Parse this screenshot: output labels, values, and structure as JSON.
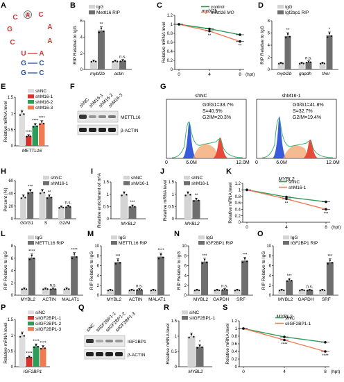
{
  "colors": {
    "dark": "#6e6e6e",
    "light": "#d4d4d4",
    "green": "#2e9c5a",
    "orange": "#f07b52",
    "red": "#d9332f",
    "blue": "#2b4d9c",
    "flow_blue": "#3a5bd9",
    "flow_green": "#3cb371",
    "flow_red": "#e64a3a"
  },
  "panel_A": {
    "label": "A",
    "loop_letters": [
      "A",
      "C",
      "A",
      "A",
      "C",
      "G",
      "C"
    ],
    "stem_left": [
      "U",
      "G",
      "G"
    ],
    "stem_right": [
      "A",
      "C",
      "C"
    ]
  },
  "panel_B": {
    "label": "B",
    "legend": [
      "IgG",
      "Mettl16 RIP"
    ],
    "ylabel": "RIP Relative to IgG",
    "categories": [
      "mybl2b",
      "actin"
    ],
    "sig": [
      "**",
      "n.s."
    ]
  },
  "panel_C": {
    "label": "C",
    "title": "mybl2b",
    "legend": [
      "control",
      "mettl16 MO"
    ],
    "ylabel": "Relative mRNA level",
    "xunit": "(hpt)",
    "sig": [
      "**",
      "**"
    ]
  },
  "panel_D": {
    "label": "D",
    "legend": [
      "IgG",
      "Igf2bp1 RIP"
    ],
    "ylabel": "RIP Relative to IgG",
    "categories": [
      "mybl2b",
      "gapdh",
      "thor"
    ],
    "sig": [
      "**",
      "n.s.",
      "*"
    ]
  },
  "panel_E": {
    "label": "E",
    "legend": [
      "shNC",
      "shM16-1",
      "shM16-2",
      "shM16-3"
    ],
    "ylabel": "Relative mRNA level",
    "xlabel": "METTL16",
    "sig": [
      "****",
      "****",
      "****"
    ]
  },
  "panel_F": {
    "label": "F",
    "lanes": [
      "shNC",
      "shM16-1",
      "shM16-2",
      "shM16-3"
    ],
    "bands": [
      "METTL16",
      "β-ACTIN"
    ]
  },
  "panel_G": {
    "label": "G",
    "plots": [
      {
        "title": "shNC",
        "stats": [
          "G0/G1=33.7%",
          "S=40.5%",
          "G2/M=20.3%"
        ]
      },
      {
        "title": "shM16-1",
        "stats": [
          "G0/G1=41.8%",
          "S=32.7%",
          "G2/M=19.4%"
        ]
      }
    ],
    "xticks": [
      "0",
      "6.0M",
      "12.0M"
    ]
  },
  "panel_H": {
    "label": "H",
    "legend": [
      "shNC",
      "shM16-1"
    ],
    "ylabel": "Percent (%)",
    "categories": [
      "G0/G1",
      "S",
      "G2/M"
    ],
    "sig": [
      "***",
      "**",
      "n.s."
    ]
  },
  "panel_I": {
    "label": "I",
    "legend": [
      "shNC",
      "shM16-1"
    ],
    "ylabel": "Relative enrichment of m⁶A",
    "xlabel": "MYBL2",
    "sig": [
      "***"
    ]
  },
  "panel_J": {
    "label": "J",
    "legend": [
      "shNC",
      "shM16-1"
    ],
    "ylabel": "Relative mRNA level",
    "xlabel": "MYBL2",
    "sig": [
      "**"
    ]
  },
  "panel_K": {
    "label": "K",
    "title": "MYBL2",
    "legend": [
      "shNC",
      "shM16-1"
    ],
    "ylabel": "Relative mRNA level",
    "xunit": "(hpt)",
    "sig": [
      "**",
      "***"
    ]
  },
  "panel_L": {
    "label": "L",
    "legend": [
      "IgG",
      "METTL16 RIP"
    ],
    "ylabel": "RIP Relative to IgG",
    "categories": [
      "MYBL2",
      "ACTIN",
      "MALAT1"
    ],
    "sig": [
      "****",
      "n.s.",
      "****"
    ]
  },
  "panel_M": {
    "label": "M",
    "legend": [
      "IgG",
      "METTL16 RIP"
    ],
    "ylabel": "RIP Relative to IgG",
    "categories": [
      "MYBL2",
      "ACTIN",
      "MALAT1"
    ],
    "sig": [
      "***",
      "n.s.",
      "****"
    ]
  },
  "panel_N": {
    "label": "N",
    "legend": [
      "IgG",
      "IGF2BP1 RIP"
    ],
    "ylabel": "RIP Relative to IgG",
    "categories": [
      "MYBL2",
      "GAPDH",
      "SRF"
    ],
    "sig": [
      "***",
      "n.s.",
      "***"
    ]
  },
  "panel_O": {
    "label": "O",
    "legend": [
      "IgG",
      "IGF2BP1 RIP"
    ],
    "ylabel": "RIP Relative to IgG",
    "categories": [
      "MYBL2",
      "GAPDH",
      "SRF"
    ],
    "sig": [
      "***",
      "n.s.",
      "***"
    ]
  },
  "panel_P": {
    "label": "P",
    "legend": [
      "siNC",
      "siIGF2BP1-1",
      "siIGF2BP1-2",
      "siIGF2BP1-3"
    ],
    "ylabel": "Relative mRNA level",
    "xlabel": "IGF2BP1",
    "sig": [
      "****",
      "****",
      "****"
    ]
  },
  "panel_Q": {
    "label": "Q",
    "lanes": [
      "siNC",
      "siIGF2BP1-1",
      "siIGF2BP1-2",
      "siIGF2BP1-3"
    ],
    "bands": [
      "IGF2BP1",
      "β-ACTIN"
    ]
  },
  "panel_R": {
    "label": "R",
    "legend": [
      "siNC",
      "siIGF2BP1-1"
    ],
    "ylabel": "Relative mRNA level",
    "xlabel": "MYBL2",
    "sig": [
      "*"
    ]
  },
  "panel_S": {
    "label": "S",
    "title": "MYBL2",
    "legend": [
      "siNC",
      "siIGF2BP1-1"
    ],
    "ylabel": "Relative mRNA level",
    "xunit": "(hpt)",
    "sig": [
      "****",
      "****"
    ]
  },
  "chart_data": [
    {
      "id": "B",
      "type": "bar",
      "categories": [
        "mybl2b",
        "actin"
      ],
      "series": [
        {
          "name": "IgG",
          "values": [
            1.0,
            1.0
          ]
        },
        {
          "name": "Mettl16 RIP",
          "values": [
            4.8,
            1.05
          ]
        }
      ],
      "ylabel": "RIP Relative to IgG",
      "ylim": [
        0,
        6
      ],
      "yticks": [
        0,
        2,
        4,
        6
      ]
    },
    {
      "id": "C",
      "type": "line",
      "title": "mybl2b",
      "x": [
        0,
        4,
        8
      ],
      "xticks": [
        0,
        4,
        8
      ],
      "series": [
        {
          "name": "control",
          "values": [
            1.0,
            0.9,
            0.77
          ]
        },
        {
          "name": "mettl16 MO",
          "values": [
            1.0,
            0.85,
            0.62
          ]
        }
      ],
      "ylabel": "Relative mRNA level",
      "ylim": [
        0,
        1.2
      ],
      "yticks": [
        0,
        0.2,
        0.4,
        0.6,
        0.8,
        1.0,
        1.2
      ]
    },
    {
      "id": "D",
      "type": "bar",
      "categories": [
        "mybl2b",
        "gapdh",
        "thor"
      ],
      "series": [
        {
          "name": "IgG",
          "values": [
            1.0,
            1.0,
            1.0
          ]
        },
        {
          "name": "Igf2bp1 RIP",
          "values": [
            5.5,
            1.2,
            5.6
          ]
        }
      ],
      "ylabel": "RIP Relative to IgG",
      "ylim": [
        0,
        8
      ],
      "yticks": [
        0,
        2,
        4,
        6,
        8
      ]
    },
    {
      "id": "E",
      "type": "bar",
      "categories": [
        "METTL16"
      ],
      "series": [
        {
          "name": "shNC",
          "values": [
            1.0
          ]
        },
        {
          "name": "shM16-1",
          "values": [
            0.3
          ]
        },
        {
          "name": "shM16-2",
          "values": [
            0.62
          ]
        },
        {
          "name": "shM16-3",
          "values": [
            0.7
          ]
        }
      ],
      "ylabel": "Relative mRNA level",
      "ylim": [
        0,
        1.5
      ],
      "yticks": [
        0,
        0.5,
        1.0,
        1.5
      ]
    },
    {
      "id": "H",
      "type": "bar",
      "categories": [
        "G0/G1",
        "S",
        "G2/M"
      ],
      "series": [
        {
          "name": "shNC",
          "values": [
            34,
            42,
            18
          ]
        },
        {
          "name": "shM16-1",
          "values": [
            42,
            34,
            19
          ]
        }
      ],
      "ylabel": "Percent (%)",
      "ylim": [
        0,
        60
      ],
      "yticks": [
        0,
        20,
        40,
        60
      ]
    },
    {
      "id": "I",
      "type": "bar",
      "categories": [
        "MYBL2"
      ],
      "series": [
        {
          "name": "shNC",
          "values": [
            1.0
          ]
        },
        {
          "name": "shM16-1",
          "values": [
            0.5
          ]
        }
      ],
      "ylabel": "Relative enrichment of m⁶A",
      "ylim": [
        0,
        1.5
      ],
      "yticks": [
        0,
        0.5,
        1.0,
        1.5
      ]
    },
    {
      "id": "J",
      "type": "bar",
      "categories": [
        "MYBL2"
      ],
      "series": [
        {
          "name": "shNC",
          "values": [
            1.0
          ]
        },
        {
          "name": "shM16-1",
          "values": [
            0.76
          ]
        }
      ],
      "ylabel": "Relative mRNA level",
      "ylim": [
        0,
        1.5
      ],
      "yticks": [
        0,
        0.5,
        1.0,
        1.5
      ]
    },
    {
      "id": "K",
      "type": "line",
      "title": "MYBL2",
      "x": [
        0,
        4,
        8
      ],
      "xticks": [
        0,
        4,
        8
      ],
      "series": [
        {
          "name": "shNC",
          "values": [
            1.0,
            0.78,
            0.63
          ]
        },
        {
          "name": "shM16-1",
          "values": [
            1.0,
            0.72,
            0.4
          ]
        }
      ],
      "ylabel": "Relative mRNA level",
      "ylim": [
        0,
        1.2
      ],
      "yticks": [
        0,
        0.2,
        0.4,
        0.6,
        0.8,
        1.0,
        1.2
      ]
    },
    {
      "id": "L",
      "type": "bar",
      "categories": [
        "MYBL2",
        "ACTIN",
        "MALAT1"
      ],
      "series": [
        {
          "name": "IgG",
          "values": [
            1.0,
            1.0,
            1.0
          ]
        },
        {
          "name": "METTL16 RIP",
          "values": [
            6.1,
            1.0,
            6.3
          ]
        }
      ],
      "ylabel": "RIP Relative to IgG",
      "ylim": [
        0,
        8
      ],
      "yticks": [
        0,
        2,
        4,
        6,
        8
      ]
    },
    {
      "id": "M",
      "type": "bar",
      "categories": [
        "MYBL2",
        "ACTIN",
        "MALAT1"
      ],
      "series": [
        {
          "name": "IgG",
          "values": [
            1.0,
            1.0,
            1.0
          ]
        },
        {
          "name": "METTL16 RIP",
          "values": [
            6.7,
            1.1,
            7.8
          ]
        }
      ],
      "ylabel": "RIP Relative to IgG",
      "ylim": [
        0,
        10
      ],
      "yticks": [
        0,
        2,
        4,
        6,
        8,
        10
      ]
    },
    {
      "id": "N",
      "type": "bar",
      "categories": [
        "MYBL2",
        "GAPDH",
        "SRF"
      ],
      "series": [
        {
          "name": "IgG",
          "values": [
            1.0,
            1.0,
            1.0
          ]
        },
        {
          "name": "IGF2BP1 RIP",
          "values": [
            6.8,
            1.1,
            7.0
          ]
        }
      ],
      "ylabel": "RIP Relative to IgG",
      "ylim": [
        0,
        10
      ],
      "yticks": [
        0,
        2,
        4,
        6,
        8,
        10
      ]
    },
    {
      "id": "O",
      "type": "bar",
      "categories": [
        "MYBL2",
        "GAPDH",
        "SRF"
      ],
      "series": [
        {
          "name": "IgG",
          "values": [
            1.0,
            1.0,
            1.0
          ]
        },
        {
          "name": "IGF2BP1 RIP",
          "values": [
            3.0,
            1.0,
            6.7
          ]
        }
      ],
      "ylabel": "RIP Relative to IgG",
      "ylim": [
        0,
        10
      ],
      "yticks": [
        0,
        2,
        4,
        6,
        8,
        10
      ]
    },
    {
      "id": "P",
      "type": "bar",
      "categories": [
        "IGF2BP1"
      ],
      "series": [
        {
          "name": "siNC",
          "values": [
            1.0
          ]
        },
        {
          "name": "siIGF2BP1-1",
          "values": [
            0.3
          ]
        },
        {
          "name": "siIGF2BP1-2",
          "values": [
            0.65
          ]
        },
        {
          "name": "siIGF2BP1-3",
          "values": [
            0.6
          ]
        }
      ],
      "ylabel": "Relative mRNA level",
      "ylim": [
        0,
        1.5
      ],
      "yticks": [
        0,
        0.5,
        1.0,
        1.5
      ]
    },
    {
      "id": "R",
      "type": "bar",
      "categories": [
        "MYBL2"
      ],
      "series": [
        {
          "name": "siNC",
          "values": [
            1.0
          ]
        },
        {
          "name": "siIGF2BP1-1",
          "values": [
            0.65
          ]
        }
      ],
      "ylabel": "Relative mRNA level",
      "ylim": [
        0,
        1.5
      ],
      "yticks": [
        0,
        0.5,
        1.0,
        1.5
      ]
    },
    {
      "id": "S",
      "type": "line",
      "title": "MYBL2",
      "x": [
        0,
        4,
        8
      ],
      "xticks": [
        0,
        4,
        8
      ],
      "series": [
        {
          "name": "siNC",
          "values": [
            1.0,
            0.78,
            0.64
          ]
        },
        {
          "name": "siIGF2BP1-1",
          "values": [
            1.0,
            0.7,
            0.4
          ]
        }
      ],
      "ylabel": "Relative mRNA level",
      "ylim": [
        0,
        1.2
      ],
      "yticks": [
        0,
        0.2,
        0.4,
        0.6,
        0.8,
        1.0,
        1.2
      ]
    }
  ]
}
